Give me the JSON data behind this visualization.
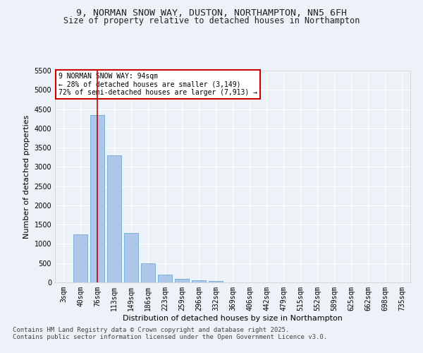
{
  "title_line1": "9, NORMAN SNOW WAY, DUSTON, NORTHAMPTON, NN5 6FH",
  "title_line2": "Size of property relative to detached houses in Northampton",
  "xlabel": "Distribution of detached houses by size in Northampton",
  "ylabel": "Number of detached properties",
  "categories": [
    "3sqm",
    "40sqm",
    "76sqm",
    "113sqm",
    "149sqm",
    "186sqm",
    "223sqm",
    "259sqm",
    "296sqm",
    "332sqm",
    "369sqm",
    "406sqm",
    "442sqm",
    "479sqm",
    "515sqm",
    "552sqm",
    "589sqm",
    "625sqm",
    "662sqm",
    "698sqm",
    "735sqm"
  ],
  "values": [
    0,
    1250,
    4350,
    3300,
    1280,
    500,
    210,
    85,
    50,
    40,
    0,
    0,
    0,
    0,
    0,
    0,
    0,
    0,
    0,
    0,
    0
  ],
  "bar_color": "#aec6e8",
  "bar_edge_color": "#5a9fd4",
  "vline_x": 2.0,
  "vline_color": "#cc0000",
  "annotation_text": "9 NORMAN SNOW WAY: 94sqm\n← 28% of detached houses are smaller (3,149)\n72% of semi-detached houses are larger (7,913) →",
  "annotation_box_color": "#ffffff",
  "annotation_box_edge": "#cc0000",
  "ylim": [
    0,
    5500
  ],
  "yticks": [
    0,
    500,
    1000,
    1500,
    2000,
    2500,
    3000,
    3500,
    4000,
    4500,
    5000,
    5500
  ],
  "footer_line1": "Contains HM Land Registry data © Crown copyright and database right 2025.",
  "footer_line2": "Contains public sector information licensed under the Open Government Licence v3.0.",
  "background_color": "#edf2f9",
  "plot_bg_color": "#edf2f9",
  "title_fontsize": 9.5,
  "subtitle_fontsize": 8.5,
  "axis_label_fontsize": 8,
  "tick_fontsize": 7,
  "footer_fontsize": 6.5
}
